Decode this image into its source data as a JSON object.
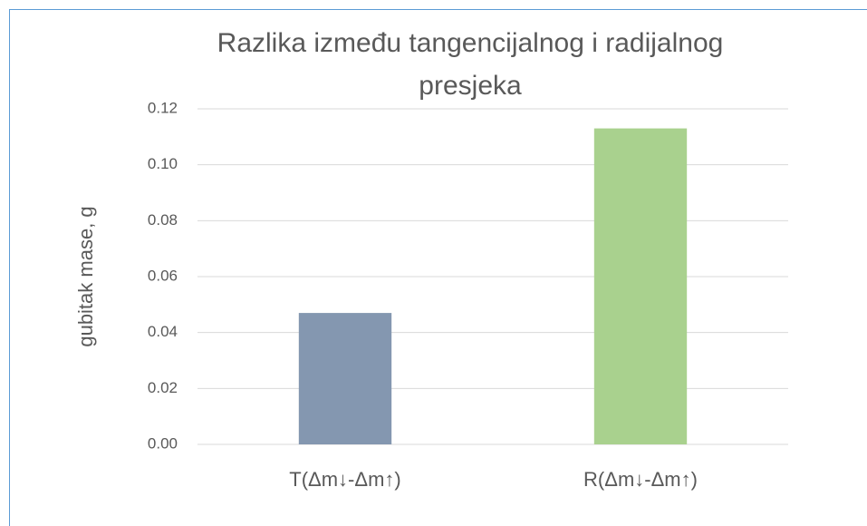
{
  "chart_data": {
    "type": "bar",
    "title": "Razlika između tangencijalnog i radijalnog presjeka",
    "y_label": "gubitak mase, g",
    "categories": [
      "T(Δm↓-Δm↑)",
      "R(Δm↓-Δm↑)"
    ],
    "values": [
      0.047,
      0.113
    ],
    "colors": [
      "#8497b0",
      "#a9d18e"
    ],
    "ylim": [
      0,
      0.12
    ],
    "yticks": [
      {
        "value": 0,
        "label": "0.00"
      },
      {
        "value": 0.02,
        "label": "0.02"
      },
      {
        "value": 0.04,
        "label": "0.04"
      },
      {
        "value": 0.06,
        "label": "0.06"
      },
      {
        "value": 0.08,
        "label": "0.08"
      },
      {
        "value": 0.1,
        "label": "0.10"
      },
      {
        "value": 0.12,
        "label": "0.12"
      }
    ],
    "grid": true
  }
}
